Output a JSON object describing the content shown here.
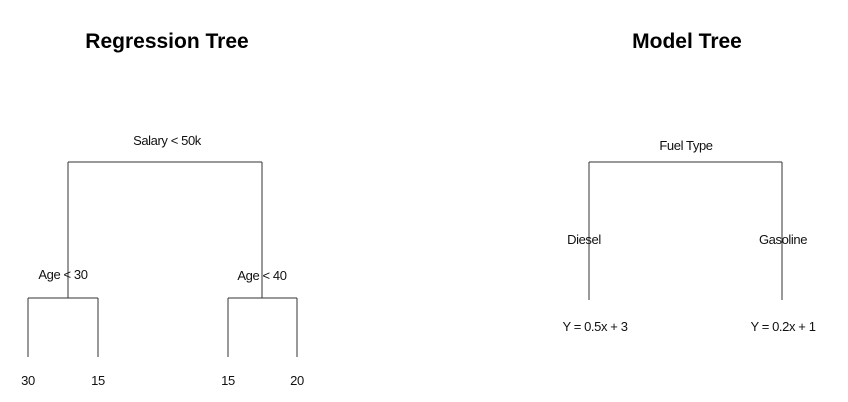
{
  "regression_tree": {
    "title": "Regression Tree",
    "root_split": "Salary < 50k",
    "left_split": "Age < 30",
    "right_split": "Age < 40",
    "leaves": [
      "30",
      "15",
      "15",
      "20"
    ]
  },
  "model_tree": {
    "title": "Model Tree",
    "root_split": "Fuel Type",
    "branches": [
      "Diesel",
      "Gasoline"
    ],
    "leaf_models": [
      "Y = 0.5x + 3",
      "Y = 0.2x + 1"
    ]
  }
}
